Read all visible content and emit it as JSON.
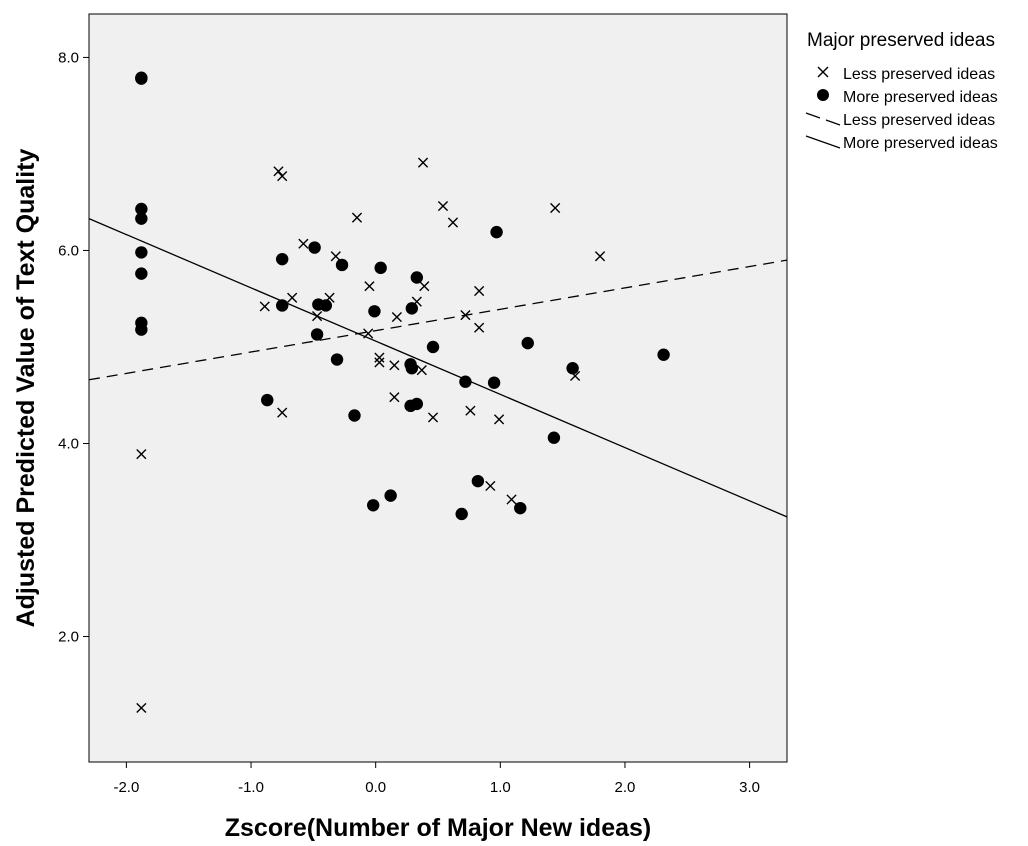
{
  "chart_data": {
    "type": "scatter",
    "title": "",
    "xlabel": "Zscore(Number of Major New ideas)",
    "ylabel": "Adjusted Predicted Value of Text Quality",
    "xlim": [
      -2.3,
      3.3
    ],
    "ylim": [
      0.7,
      8.45
    ],
    "x_ticks": [
      -2.0,
      -1.0,
      0.0,
      1.0,
      2.0,
      3.0
    ],
    "x_tick_labels": [
      "-2.0",
      "-1.0",
      "0.0",
      "1.0",
      "2.0",
      "3.0"
    ],
    "y_ticks": [
      2.0,
      4.0,
      6.0,
      8.0
    ],
    "y_tick_labels": [
      "2.0",
      "4.0",
      "6.0",
      "8.0"
    ],
    "grid": false,
    "background": "#f0f0f0",
    "legend": {
      "title": "Major preserved ideas",
      "position": "top-right outside",
      "entries": [
        {
          "label": "Less preserved ideas",
          "symbol": "x-marker"
        },
        {
          "label": "More preserved ideas",
          "symbol": "filled-circle"
        },
        {
          "label": "Less preserved ideas",
          "symbol": "dashed-line"
        },
        {
          "label": "More preserved ideas",
          "symbol": "solid-line"
        }
      ]
    },
    "series": [
      {
        "name": "Less preserved ideas",
        "marker": "x",
        "points": [
          [
            -1.88,
            3.89
          ],
          [
            -1.88,
            1.26
          ],
          [
            -0.78,
            6.82
          ],
          [
            -0.75,
            6.77
          ],
          [
            -0.58,
            6.07
          ],
          [
            -0.15,
            6.34
          ],
          [
            -0.32,
            5.94
          ],
          [
            -0.05,
            5.63
          ],
          [
            -0.67,
            5.51
          ],
          [
            -0.89,
            5.42
          ],
          [
            -0.37,
            5.51
          ],
          [
            -0.47,
            5.32
          ],
          [
            -0.06,
            5.14
          ],
          [
            0.03,
            4.89
          ],
          [
            0.03,
            4.84
          ],
          [
            0.17,
            5.31
          ],
          [
            0.15,
            4.81
          ],
          [
            0.33,
            5.47
          ],
          [
            0.39,
            5.63
          ],
          [
            0.37,
            4.76
          ],
          [
            0.15,
            4.48
          ],
          [
            -0.75,
            4.32
          ],
          [
            0.38,
            6.91
          ],
          [
            0.54,
            6.46
          ],
          [
            0.62,
            6.29
          ],
          [
            0.72,
            5.33
          ],
          [
            0.83,
            5.58
          ],
          [
            0.83,
            5.2
          ],
          [
            0.46,
            4.27
          ],
          [
            0.76,
            4.34
          ],
          [
            0.99,
            4.25
          ],
          [
            1.44,
            6.44
          ],
          [
            1.8,
            5.94
          ],
          [
            1.6,
            4.7
          ],
          [
            0.92,
            3.56
          ],
          [
            1.09,
            3.42
          ]
        ]
      },
      {
        "name": "More preserved ideas",
        "marker": "circle",
        "points": [
          [
            -1.88,
            7.79
          ],
          [
            -1.88,
            7.78
          ],
          [
            -1.88,
            6.43
          ],
          [
            -1.88,
            6.33
          ],
          [
            -1.88,
            5.98
          ],
          [
            -1.88,
            5.76
          ],
          [
            -1.88,
            5.25
          ],
          [
            -1.88,
            5.18
          ],
          [
            -0.75,
            5.91
          ],
          [
            -0.49,
            6.03
          ],
          [
            -0.27,
            5.85
          ],
          [
            0.04,
            5.82
          ],
          [
            0.97,
            6.19
          ],
          [
            0.33,
            5.72
          ],
          [
            -0.75,
            5.43
          ],
          [
            -0.46,
            5.44
          ],
          [
            -0.4,
            5.43
          ],
          [
            -0.01,
            5.37
          ],
          [
            0.29,
            5.4
          ],
          [
            -0.47,
            5.13
          ],
          [
            -0.31,
            4.87
          ],
          [
            0.46,
            5.0
          ],
          [
            0.28,
            4.82
          ],
          [
            0.29,
            4.78
          ],
          [
            0.72,
            4.64
          ],
          [
            0.95,
            4.63
          ],
          [
            1.22,
            5.04
          ],
          [
            1.58,
            4.78
          ],
          [
            2.31,
            4.92
          ],
          [
            -0.87,
            4.45
          ],
          [
            -0.17,
            4.29
          ],
          [
            0.28,
            4.39
          ],
          [
            0.33,
            4.41
          ],
          [
            1.43,
            4.06
          ],
          [
            0.82,
            3.61
          ],
          [
            1.16,
            3.33
          ],
          [
            0.12,
            3.46
          ],
          [
            -0.02,
            3.36
          ],
          [
            0.69,
            3.27
          ]
        ]
      }
    ],
    "fit_lines": [
      {
        "name": "Less preserved ideas",
        "style": "dashed",
        "points": [
          [
            -2.3,
            4.66
          ],
          [
            3.3,
            5.9
          ]
        ]
      },
      {
        "name": "More preserved ideas",
        "style": "solid",
        "points": [
          [
            -2.3,
            6.33
          ],
          [
            3.3,
            3.24
          ]
        ]
      }
    ]
  }
}
